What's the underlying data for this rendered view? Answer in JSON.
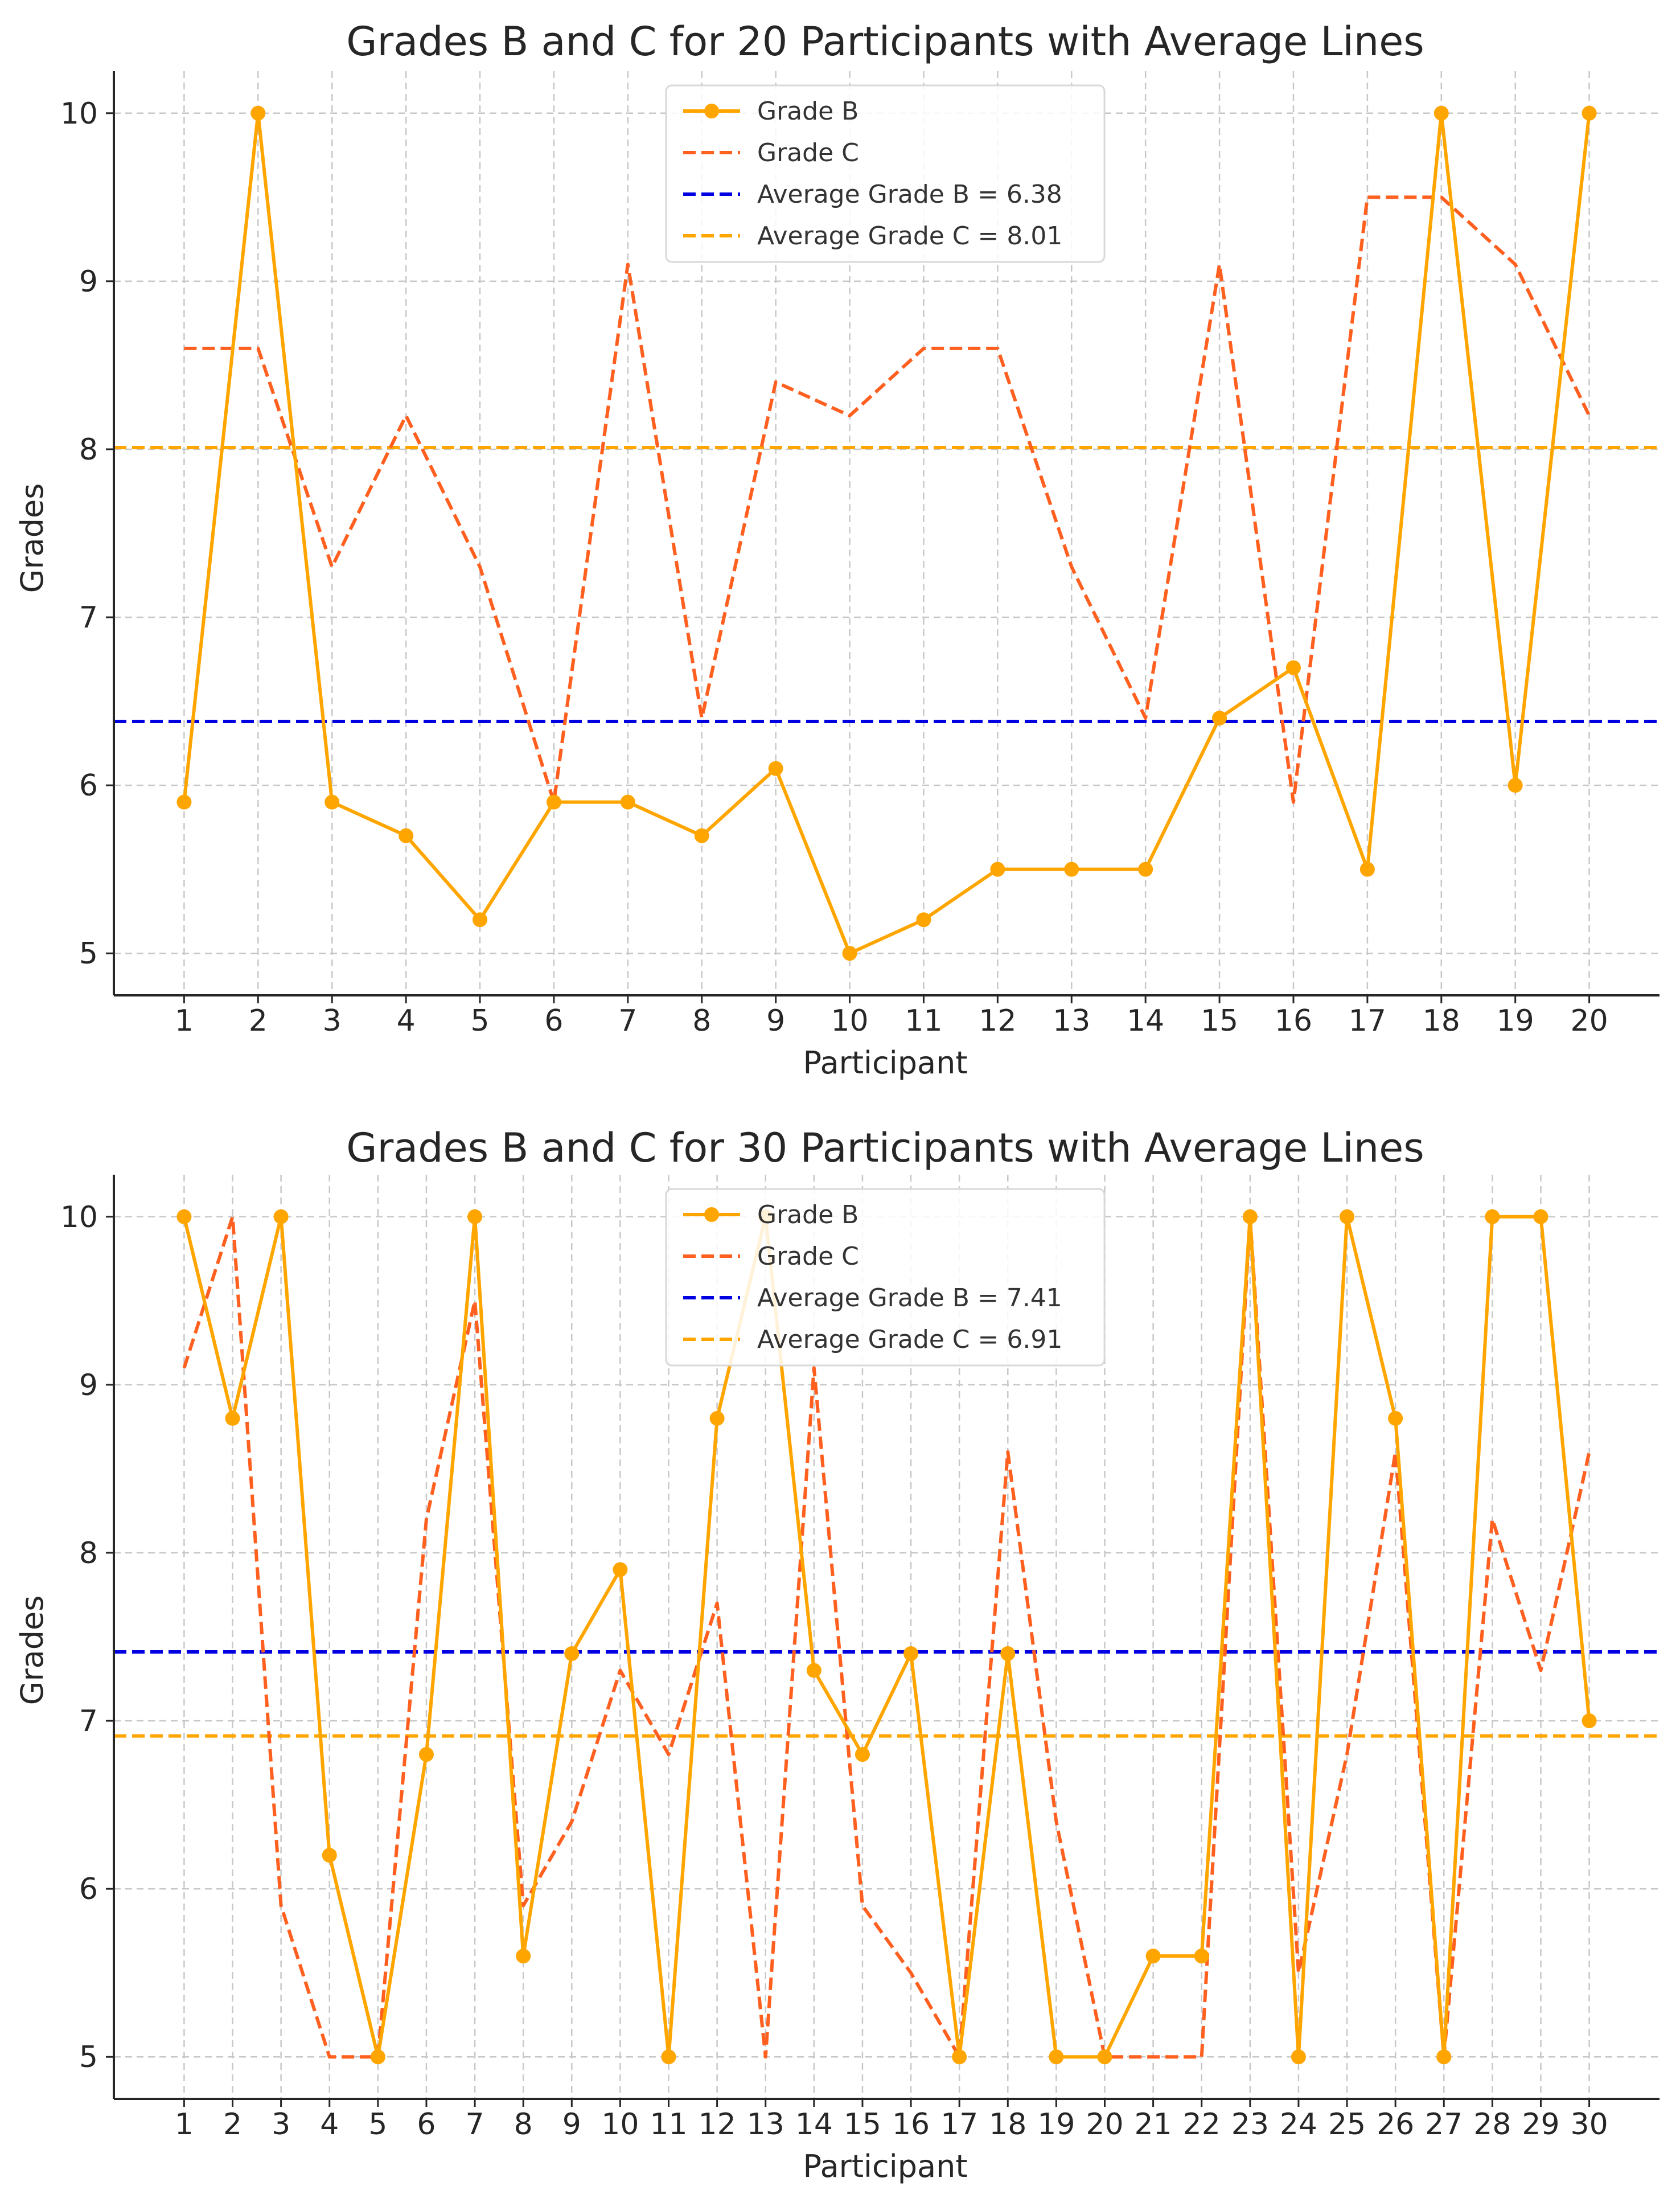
{
  "colors": {
    "grade_b": "#FFA500",
    "grade_c": "#FF6020",
    "avg_b": "#0000E0",
    "avg_c": "#FFA500",
    "grid": "#C8C8C8",
    "text": "#262626"
  },
  "chart_data": [
    {
      "type": "line",
      "title": "Grades B and C for 20 Participants with Average Lines",
      "xlabel": "Participant",
      "ylabel": "Grades",
      "x": [
        1,
        2,
        3,
        4,
        5,
        6,
        7,
        8,
        9,
        10,
        11,
        12,
        13,
        14,
        15,
        16,
        17,
        18,
        19,
        20
      ],
      "xlim": [
        0.05,
        20.95
      ],
      "ylim": [
        4.75,
        10.25
      ],
      "yticks": [
        5,
        6,
        7,
        8,
        9,
        10
      ],
      "grid": true,
      "legend_position": "top-center",
      "series": [
        {
          "name": "Grade B",
          "style": "solid-marker",
          "color_key": "grade_b",
          "values": [
            5.9,
            10,
            5.9,
            5.7,
            5.2,
            5.9,
            5.9,
            5.7,
            6.1,
            5.0,
            5.2,
            5.5,
            5.5,
            5.5,
            6.4,
            6.7,
            5.5,
            10,
            6.0,
            10
          ]
        },
        {
          "name": "Grade C",
          "style": "dashed",
          "color_key": "grade_c",
          "values": [
            8.6,
            8.6,
            7.3,
            8.2,
            7.3,
            5.9,
            9.1,
            6.4,
            8.4,
            8.2,
            8.6,
            8.6,
            7.3,
            6.4,
            9.1,
            5.9,
            9.5,
            9.5,
            9.1,
            8.2
          ]
        }
      ],
      "hlines": [
        {
          "name": "Average Grade B = 6.38",
          "y": 6.38,
          "color_key": "avg_b"
        },
        {
          "name": "Average Grade C = 8.01",
          "y": 8.01,
          "color_key": "avg_c"
        }
      ]
    },
    {
      "type": "line",
      "title": "Grades B and C for 30 Participants with Average Lines",
      "xlabel": "Participant",
      "ylabel": "Grades",
      "x": [
        1,
        2,
        3,
        4,
        5,
        6,
        7,
        8,
        9,
        10,
        11,
        12,
        13,
        14,
        15,
        16,
        17,
        18,
        19,
        20,
        21,
        22,
        23,
        24,
        25,
        26,
        27,
        28,
        29,
        30
      ],
      "xlim": [
        -0.45,
        31.45
      ],
      "ylim": [
        4.75,
        10.25
      ],
      "yticks": [
        5,
        6,
        7,
        8,
        9,
        10
      ],
      "grid": true,
      "legend_position": "top-center",
      "series": [
        {
          "name": "Grade B",
          "style": "solid-marker",
          "color_key": "grade_b",
          "values": [
            10,
            8.8,
            10,
            6.2,
            5.0,
            6.8,
            10,
            5.6,
            7.4,
            7.9,
            5.0,
            8.8,
            10,
            7.3,
            6.8,
            7.4,
            5.0,
            7.4,
            5.0,
            5.0,
            5.6,
            5.6,
            10,
            5.0,
            10,
            8.8,
            5.0,
            10,
            10,
            7.0
          ]
        },
        {
          "name": "Grade C",
          "style": "dashed",
          "color_key": "grade_c",
          "values": [
            9.1,
            10,
            5.9,
            5.0,
            5.0,
            8.2,
            9.5,
            5.9,
            6.4,
            7.3,
            6.8,
            7.7,
            5.0,
            9.1,
            5.9,
            5.5,
            5.0,
            8.6,
            6.4,
            5.0,
            5.0,
            5.0,
            10,
            5.5,
            6.8,
            8.6,
            5.0,
            8.2,
            7.3,
            8.6
          ]
        }
      ],
      "hlines": [
        {
          "name": "Average Grade B = 7.41",
          "y": 7.41,
          "color_key": "avg_b"
        },
        {
          "name": "Average Grade C = 6.91",
          "y": 6.91,
          "color_key": "avg_c"
        }
      ]
    }
  ]
}
